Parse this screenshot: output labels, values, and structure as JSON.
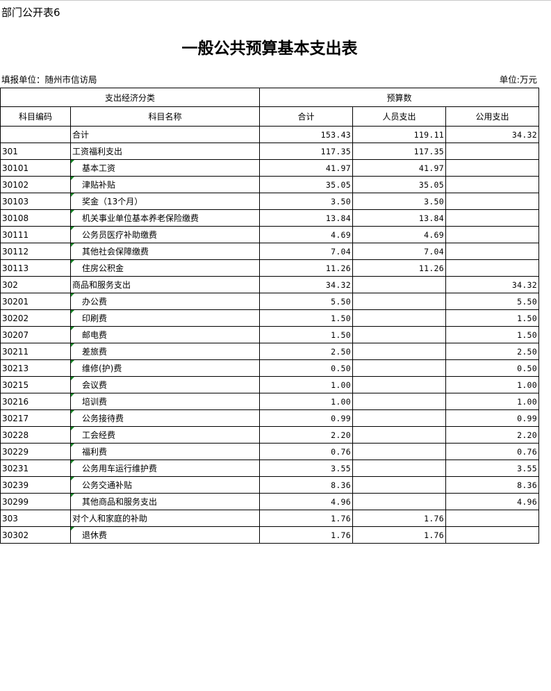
{
  "table_no": "部门公开表6",
  "title": "一般公共预算基本支出表",
  "unit_left": "填报单位：随州市信访局",
  "unit_right": "单位:万元",
  "headers": {
    "group1": "支出经济分类",
    "group2": "预算数",
    "code": "科目编码",
    "name": "科目名称",
    "total": "合计",
    "personnel": "人员支出",
    "public": "公用支出"
  },
  "rows": [
    {
      "code": "",
      "name": "合计",
      "total": "153.43",
      "personnel": "119.11",
      "public": "34.32",
      "indent": false
    },
    {
      "code": "301",
      "name": "工资福利支出",
      "total": "117.35",
      "personnel": "117.35",
      "public": "",
      "indent": false
    },
    {
      "code": "30101",
      "name": "基本工资",
      "total": "41.97",
      "personnel": "41.97",
      "public": "",
      "indent": true
    },
    {
      "code": "30102",
      "name": "津贴补贴",
      "total": "35.05",
      "personnel": "35.05",
      "public": "",
      "indent": true
    },
    {
      "code": "30103",
      "name": "奖金（13个月）",
      "total": "3.50",
      "personnel": "3.50",
      "public": "",
      "indent": true
    },
    {
      "code": "30108",
      "name": "机关事业单位基本养老保险缴费",
      "total": "13.84",
      "personnel": "13.84",
      "public": "",
      "indent": true
    },
    {
      "code": "30111",
      "name": "公务员医疗补助缴费",
      "total": "4.69",
      "personnel": "4.69",
      "public": "",
      "indent": true
    },
    {
      "code": "30112",
      "name": "其他社会保障缴费",
      "total": "7.04",
      "personnel": "7.04",
      "public": "",
      "indent": true
    },
    {
      "code": "30113",
      "name": "住房公积金",
      "total": "11.26",
      "personnel": "11.26",
      "public": "",
      "indent": true
    },
    {
      "code": "302",
      "name": "商品和服务支出",
      "total": "34.32",
      "personnel": "",
      "public": "34.32",
      "indent": false
    },
    {
      "code": "30201",
      "name": "办公费",
      "total": "5.50",
      "personnel": "",
      "public": "5.50",
      "indent": true
    },
    {
      "code": "30202",
      "name": "印刷费",
      "total": "1.50",
      "personnel": "",
      "public": "1.50",
      "indent": true
    },
    {
      "code": "30207",
      "name": "邮电费",
      "total": "1.50",
      "personnel": "",
      "public": "1.50",
      "indent": true
    },
    {
      "code": "30211",
      "name": "差旅费",
      "total": "2.50",
      "personnel": "",
      "public": "2.50",
      "indent": true
    },
    {
      "code": "30213",
      "name": "维修(护)费",
      "total": "0.50",
      "personnel": "",
      "public": "0.50",
      "indent": true
    },
    {
      "code": "30215",
      "name": "会议费",
      "total": "1.00",
      "personnel": "",
      "public": "1.00",
      "indent": true
    },
    {
      "code": "30216",
      "name": "培训费",
      "total": "1.00",
      "personnel": "",
      "public": "1.00",
      "indent": true
    },
    {
      "code": "30217",
      "name": "公务接待费",
      "total": "0.99",
      "personnel": "",
      "public": "0.99",
      "indent": true
    },
    {
      "code": "30228",
      "name": "工会经费",
      "total": "2.20",
      "personnel": "",
      "public": "2.20",
      "indent": true
    },
    {
      "code": "30229",
      "name": "福利费",
      "total": "0.76",
      "personnel": "",
      "public": "0.76",
      "indent": true
    },
    {
      "code": "30231",
      "name": "公务用车运行维护费",
      "total": "3.55",
      "personnel": "",
      "public": "3.55",
      "indent": true
    },
    {
      "code": "30239",
      "name": "公务交通补贴",
      "total": "8.36",
      "personnel": "",
      "public": "8.36",
      "indent": true
    },
    {
      "code": "30299",
      "name": "其他商品和服务支出",
      "total": "4.96",
      "personnel": "",
      "public": "4.96",
      "indent": true
    },
    {
      "code": "303",
      "name": "对个人和家庭的补助",
      "total": "1.76",
      "personnel": "1.76",
      "public": "",
      "indent": false
    },
    {
      "code": "30302",
      "name": "退休费",
      "total": "1.76",
      "personnel": "1.76",
      "public": "",
      "indent": true
    }
  ]
}
